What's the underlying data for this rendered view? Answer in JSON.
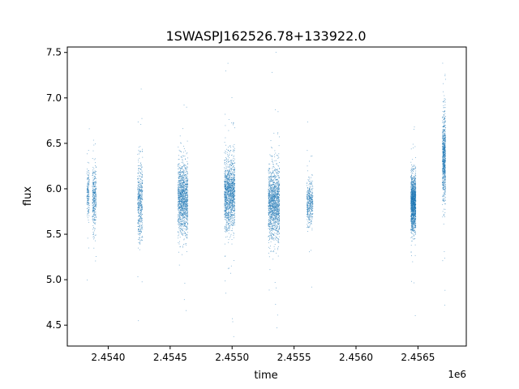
{
  "chart_data": {
    "type": "scatter",
    "title": "1SWASPJ162526.78+133922.0",
    "xlabel": "time",
    "ylabel": "flux",
    "x_offset_label": "1e6",
    "xlim": [
      2453670,
      2456890
    ],
    "ylim": [
      4.27,
      7.56
    ],
    "x_ticks": [
      2454000,
      2454500,
      2455000,
      2455500,
      2456000,
      2456500
    ],
    "x_tick_labels": [
      "2.4540",
      "2.4545",
      "2.4550",
      "2.4555",
      "2.4560",
      "2.4565"
    ],
    "y_ticks": [
      4.5,
      5.0,
      5.5,
      6.0,
      6.5,
      7.0,
      7.5
    ],
    "y_tick_labels": [
      "4.5",
      "5.0",
      "5.5",
      "6.0",
      "6.5",
      "7.0",
      "7.5"
    ],
    "grid": false,
    "legend": "none",
    "marker_color": "#1f77b4",
    "observing_seasons": [
      {
        "x_range": [
          2453825,
          2453845
        ],
        "y_center": 5.95,
        "y_spread": 0.28,
        "density": 0.12
      },
      {
        "x_range": [
          2453870,
          2453900
        ],
        "y_center": 5.9,
        "y_spread": 0.35,
        "density": 0.25
      },
      {
        "x_range": [
          2454235,
          2454275
        ],
        "y_center": 5.85,
        "y_spread": 0.45,
        "density": 0.35
      },
      {
        "x_range": [
          2454560,
          2454640
        ],
        "y_center": 5.9,
        "y_spread": 0.38,
        "density": 0.9
      },
      {
        "x_range": [
          2454935,
          2455020
        ],
        "y_center": 5.95,
        "y_spread": 0.38,
        "density": 1.0
      },
      {
        "x_range": [
          2455290,
          2455380
        ],
        "y_center": 5.85,
        "y_spread": 0.38,
        "density": 1.0
      },
      {
        "x_range": [
          2455600,
          2455650
        ],
        "y_center": 5.85,
        "y_spread": 0.25,
        "density": 0.3
      },
      {
        "x_range": [
          2456440,
          2456480
        ],
        "y_center": 5.85,
        "y_spread": 0.3,
        "density": 1.0
      },
      {
        "x_range": [
          2456695,
          2456720
        ],
        "y_center": 6.35,
        "y_spread": 0.45,
        "density": 0.55
      }
    ]
  }
}
